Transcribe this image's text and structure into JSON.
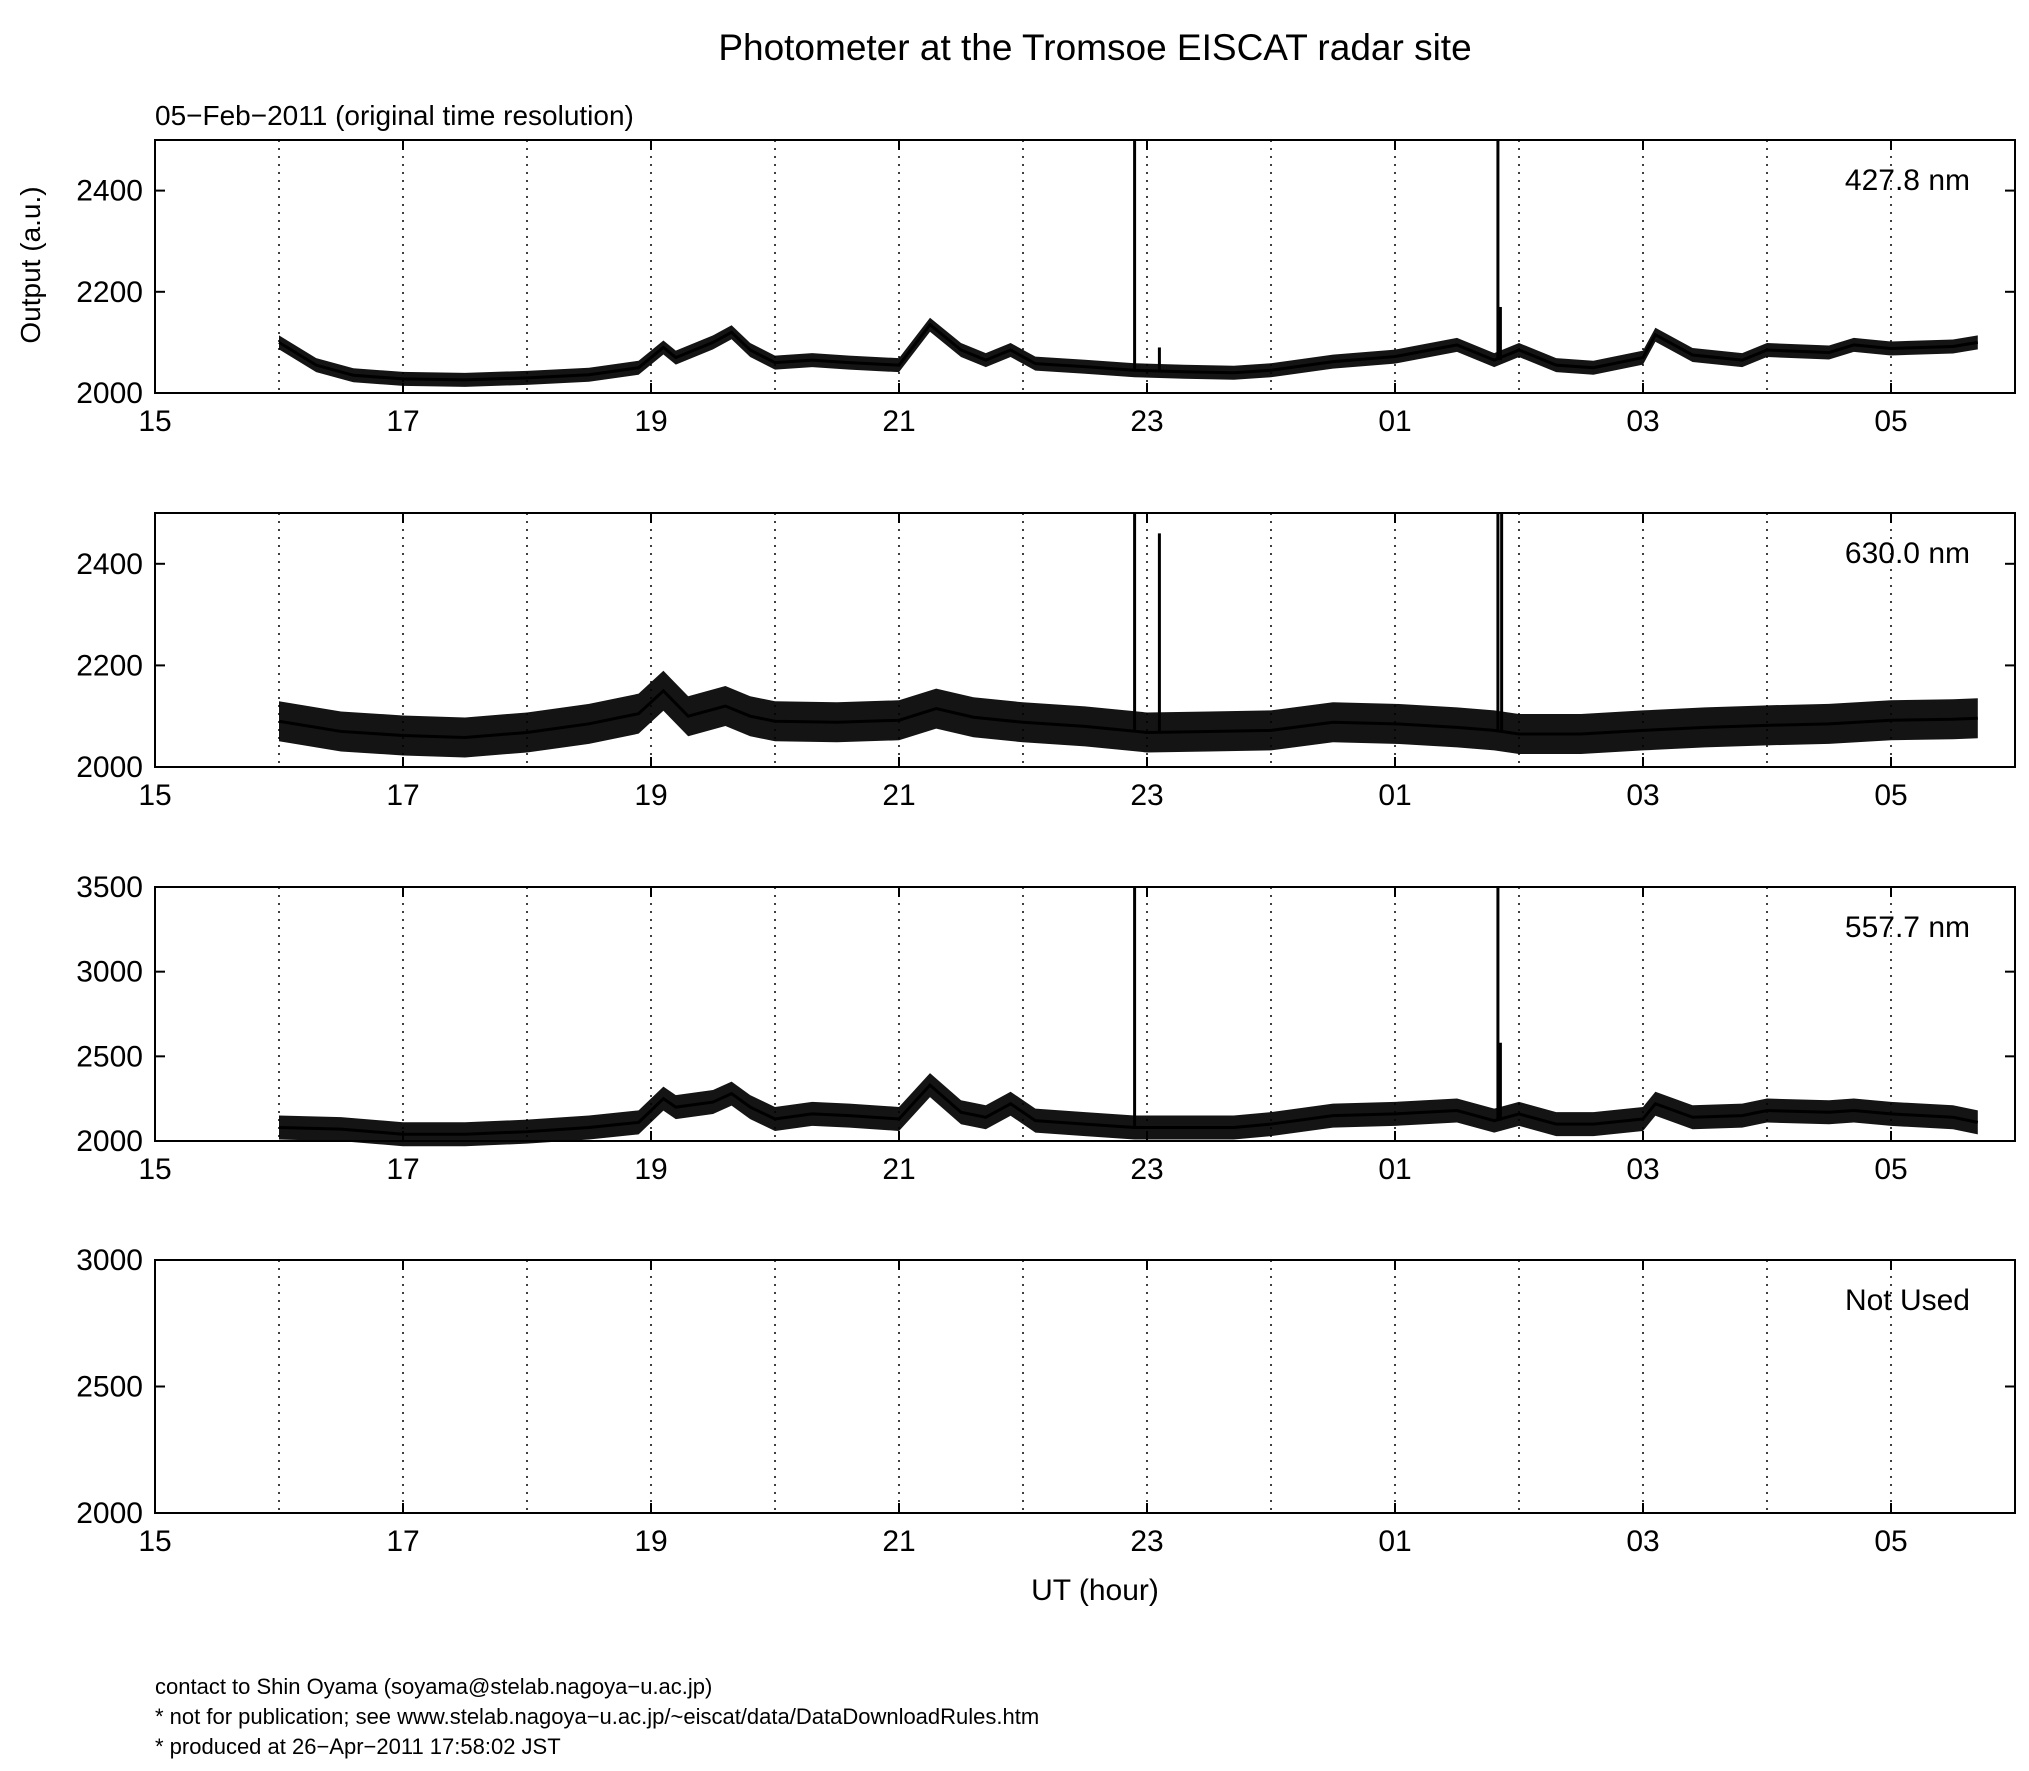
{
  "chart_data": {
    "title": "Photometer at the Tromsoe EISCAT radar site",
    "subtitle": "05−Feb−2011 (original time resolution)",
    "xlabel": "UT (hour)",
    "ylabel": "Output (a.u.)",
    "grid": "dotted vertical lines at every hour",
    "x_ticks": [
      "15",
      "17",
      "19",
      "21",
      "23",
      "01",
      "03",
      "05"
    ],
    "panels": [
      {
        "type": "line",
        "name": "427.8 nm",
        "ylim": [
          2000,
          2500
        ],
        "y_ticks": [
          "2000",
          "2200",
          "2400"
        ],
        "band_halfwidth": 7,
        "x": [
          16.0,
          16.3,
          16.6,
          17.0,
          17.5,
          18.0,
          18.5,
          18.9,
          19.1,
          19.2,
          19.5,
          19.65,
          19.8,
          20.0,
          20.3,
          20.6,
          21.0,
          21.25,
          21.5,
          21.7,
          21.9,
          22.1,
          22.5,
          22.9,
          23.3,
          23.7,
          24.0,
          24.5,
          25.0,
          25.5,
          25.8,
          26.0,
          26.3,
          26.6,
          27.0,
          27.1,
          27.4,
          27.8,
          28.0,
          28.5,
          28.7,
          29.0,
          29.5,
          29.7
        ],
        "y": [
          2100,
          2055,
          2035,
          2028,
          2026,
          2030,
          2036,
          2050,
          2090,
          2070,
          2100,
          2120,
          2085,
          2060,
          2065,
          2060,
          2055,
          2135,
          2085,
          2065,
          2085,
          2058,
          2052,
          2045,
          2042,
          2040,
          2045,
          2062,
          2072,
          2095,
          2065,
          2085,
          2055,
          2050,
          2070,
          2115,
          2075,
          2065,
          2085,
          2080,
          2095,
          2088,
          2092,
          2100
        ],
        "spikes": [
          {
            "x": 22.9,
            "y": 2500
          },
          {
            "x": 25.83,
            "y": 2500
          },
          {
            "x": 25.85,
            "y": 2170
          },
          {
            "x": 23.1,
            "y": 2090
          }
        ]
      },
      {
        "type": "line",
        "name": "630.0 nm",
        "ylim": [
          2000,
          2500
        ],
        "y_ticks": [
          "2000",
          "2200",
          "2400"
        ],
        "band_halfwidth": 20,
        "x": [
          16.0,
          16.5,
          17.0,
          17.5,
          18.0,
          18.5,
          18.9,
          19.1,
          19.3,
          19.6,
          19.8,
          20.0,
          20.5,
          21.0,
          21.3,
          21.6,
          22.0,
          22.5,
          23.0,
          23.5,
          24.0,
          24.5,
          25.0,
          25.5,
          25.8,
          26.0,
          26.5,
          27.0,
          27.5,
          28.0,
          28.5,
          29.0,
          29.5,
          29.7
        ],
        "y": [
          2090,
          2070,
          2062,
          2058,
          2068,
          2085,
          2105,
          2150,
          2100,
          2120,
          2100,
          2090,
          2088,
          2092,
          2115,
          2098,
          2088,
          2080,
          2068,
          2070,
          2072,
          2088,
          2085,
          2078,
          2072,
          2065,
          2065,
          2072,
          2078,
          2082,
          2085,
          2092,
          2094,
          2096
        ],
        "spikes": [
          {
            "x": 22.9,
            "y": 2500
          },
          {
            "x": 23.1,
            "y": 2460
          },
          {
            "x": 25.83,
            "y": 2500
          },
          {
            "x": 25.86,
            "y": 2500
          }
        ]
      },
      {
        "type": "line",
        "name": "557.7 nm",
        "ylim": [
          2000,
          3500
        ],
        "y_ticks": [
          "2000",
          "2500",
          "3000",
          "3500"
        ],
        "band_halfwidth": 12,
        "x": [
          16.0,
          16.5,
          17.0,
          17.5,
          18.0,
          18.5,
          18.9,
          19.1,
          19.2,
          19.5,
          19.65,
          19.8,
          20.0,
          20.3,
          20.6,
          21.0,
          21.25,
          21.5,
          21.7,
          21.9,
          22.1,
          22.5,
          22.9,
          23.3,
          23.7,
          24.0,
          24.5,
          25.0,
          25.5,
          25.8,
          26.0,
          26.3,
          26.6,
          27.0,
          27.1,
          27.4,
          27.8,
          28.0,
          28.5,
          28.7,
          29.0,
          29.5,
          29.7
        ],
        "y": [
          2080,
          2070,
          2040,
          2040,
          2055,
          2080,
          2110,
          2250,
          2200,
          2230,
          2280,
          2200,
          2130,
          2160,
          2150,
          2130,
          2330,
          2170,
          2140,
          2220,
          2120,
          2100,
          2080,
          2080,
          2080,
          2100,
          2150,
          2160,
          2180,
          2120,
          2160,
          2100,
          2100,
          2130,
          2220,
          2140,
          2150,
          2180,
          2170,
          2180,
          2160,
          2140,
          2110
        ],
        "spikes": [
          {
            "x": 22.9,
            "y": 3500
          },
          {
            "x": 25.83,
            "y": 3500
          },
          {
            "x": 25.85,
            "y": 2580
          }
        ]
      },
      {
        "type": "line",
        "name": "Not Used",
        "ylim": [
          2000,
          3000
        ],
        "y_ticks": [
          "2000",
          "2500",
          "3000"
        ],
        "band_halfwidth": 0,
        "x": [],
        "y": [],
        "spikes": []
      }
    ]
  },
  "footer": {
    "contact": "contact to Shin Oyama (soyama@stelab.nagoya−u.ac.jp)",
    "note": "* not for publication; see www.stelab.nagoya−u.ac.jp/~eiscat/data/DataDownloadRules.htm",
    "produced": "* produced at 26−Apr−2011 17:58:02 JST"
  }
}
